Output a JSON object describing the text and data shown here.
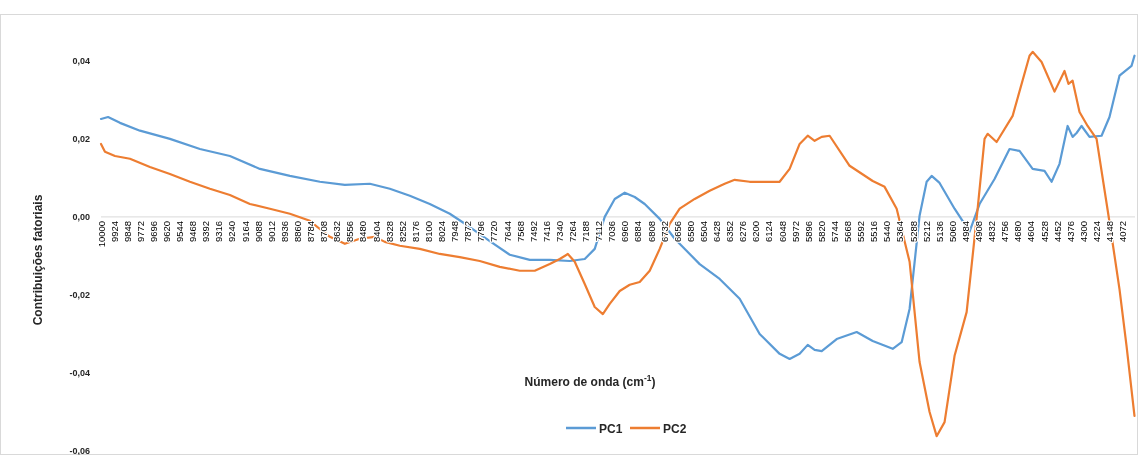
{
  "chart_data": {
    "type": "line",
    "xlabel": "Número de onda (cm$^{-1}$)",
    "ylabel": "Contribuições fatoriais",
    "xlim": [
      10000,
      4000
    ],
    "ylim": [
      -0.06,
      0.052
    ],
    "xticks": [
      10000,
      9924,
      9848,
      9772,
      9696,
      9620,
      9544,
      9468,
      9392,
      9316,
      9240,
      9164,
      9088,
      9012,
      8936,
      8860,
      8784,
      8708,
      8632,
      8556,
      8480,
      8404,
      8328,
      8252,
      8176,
      8100,
      8024,
      7948,
      7872,
      7796,
      7720,
      7644,
      7568,
      7492,
      7416,
      7340,
      7264,
      7188,
      7112,
      7036,
      6960,
      6884,
      6808,
      6732,
      6656,
      6580,
      6504,
      6428,
      6352,
      6276,
      6200,
      6124,
      6048,
      5972,
      5896,
      5820,
      5744,
      5668,
      5592,
      5516,
      5440,
      5364,
      5288,
      5212,
      5136,
      5060,
      4984,
      4908,
      4832,
      4756,
      4680,
      4604,
      4528,
      4452,
      4376,
      4300,
      4224,
      4148,
      4072
    ],
    "yticks": [
      {
        "value": -0.06,
        "label": "-0,06"
      },
      {
        "value": -0.04,
        "label": "-0,04"
      },
      {
        "value": -0.02,
        "label": "-0,02"
      },
      {
        "value": 0,
        "label": "0,00"
      },
      {
        "value": 0.02,
        "label": "0,02"
      },
      {
        "value": 0.04,
        "label": "0,04"
      }
    ],
    "grid": false,
    "legend": "bottom",
    "marker": "none",
    "line_style": "solid",
    "series": [
      {
        "name": "PC1",
        "color": "#5b9bd5",
        "x": [
          10000,
          9959,
          9890,
          9774,
          9600,
          9426,
          9252,
          9078,
          8904,
          8730,
          8585,
          8440,
          8324,
          8208,
          8092,
          7976,
          7860,
          7744,
          7628,
          7512,
          7396,
          7280,
          7193,
          7135,
          7077,
          7019,
          6961,
          6903,
          6845,
          6758,
          6671,
          6526,
          6410,
          6294,
          6178,
          6062,
          6004,
          5946,
          5899,
          5859,
          5818,
          5731,
          5615,
          5522,
          5406,
          5354,
          5308,
          5250,
          5209,
          5180,
          5134,
          5047,
          4960,
          4902,
          4815,
          4728,
          4670,
          4594,
          4525,
          4484,
          4438,
          4391,
          4362,
          4339,
          4310,
          4264,
          4194,
          4148,
          4090,
          4020,
          4003
        ],
        "values": [
          0.0251,
          0.0256,
          0.0241,
          0.0221,
          0.02,
          0.0174,
          0.0156,
          0.0123,
          0.0105,
          0.009,
          0.0082,
          0.0085,
          0.0072,
          0.0054,
          0.0033,
          0.0008,
          -0.0026,
          -0.0062,
          -0.0097,
          -0.011,
          -0.011,
          -0.0113,
          -0.0108,
          -0.0082,
          0,
          0.0046,
          0.0062,
          0.0051,
          0.0033,
          -0.0005,
          -0.0056,
          -0.0121,
          -0.0159,
          -0.021,
          -0.03,
          -0.0351,
          -0.0364,
          -0.0351,
          -0.0328,
          -0.0341,
          -0.0344,
          -0.0313,
          -0.0295,
          -0.0318,
          -0.0338,
          -0.0321,
          -0.0236,
          0.0003,
          0.009,
          0.0105,
          0.0087,
          0.0021,
          -0.0038,
          0.0033,
          0.0097,
          0.0174,
          0.0169,
          0.0123,
          0.0118,
          0.009,
          0.0136,
          0.0233,
          0.0205,
          0.0215,
          0.0233,
          0.0205,
          0.0208,
          0.0256,
          0.0362,
          0.0387,
          0.0413
        ]
      },
      {
        "name": "PC2",
        "color": "#ed7d31",
        "x": [
          10000,
          9977,
          9919,
          9832,
          9716,
          9600,
          9484,
          9368,
          9252,
          9136,
          9020,
          8904,
          8788,
          8730,
          8672,
          8585,
          8498,
          8411,
          8353,
          8266,
          8150,
          8034,
          7918,
          7802,
          7686,
          7570,
          7483,
          7396,
          7338,
          7291,
          7251,
          7193,
          7135,
          7088,
          7048,
          6990,
          6932,
          6874,
          6816,
          6758,
          6700,
          6642,
          6555,
          6468,
          6381,
          6323,
          6236,
          6149,
          6062,
          6004,
          5946,
          5899,
          5859,
          5818,
          5772,
          5656,
          5522,
          5453,
          5383,
          5308,
          5250,
          5192,
          5151,
          5105,
          5047,
          4977,
          4913,
          4873,
          4855,
          4803,
          4710,
          4612,
          4594,
          4542,
          4467,
          4409,
          4386,
          4362,
          4322,
          4275,
          4223,
          4148,
          4090,
          4049,
          4003
        ],
        "values": [
          0.0187,
          0.0167,
          0.0156,
          0.0149,
          0.0128,
          0.011,
          0.009,
          0.0072,
          0.0056,
          0.0033,
          0.0021,
          0.0008,
          -0.001,
          -0.0031,
          -0.0051,
          -0.0069,
          -0.0056,
          -0.0051,
          -0.0064,
          -0.0074,
          -0.0082,
          -0.0095,
          -0.0103,
          -0.0113,
          -0.0128,
          -0.0138,
          -0.0138,
          -0.0121,
          -0.0108,
          -0.0095,
          -0.0115,
          -0.0172,
          -0.0231,
          -0.0249,
          -0.0223,
          -0.019,
          -0.0174,
          -0.0167,
          -0.0138,
          -0.0082,
          -0.0018,
          0.0021,
          0.0046,
          0.0067,
          0.0085,
          0.0095,
          0.009,
          0.009,
          0.009,
          0.0123,
          0.0187,
          0.0208,
          0.0195,
          0.0205,
          0.0208,
          0.0131,
          0.0092,
          0.0077,
          0.0021,
          -0.0115,
          -0.0372,
          -0.05,
          -0.0562,
          -0.0526,
          -0.0356,
          -0.0244,
          0.0021,
          0.02,
          0.0213,
          0.0192,
          0.0259,
          0.0413,
          0.0423,
          0.0397,
          0.0321,
          0.0374,
          0.0341,
          0.0349,
          0.0269,
          0.0233,
          0.02,
          -0.0013,
          -0.0185,
          -0.0331,
          -0.051
        ]
      }
    ]
  }
}
